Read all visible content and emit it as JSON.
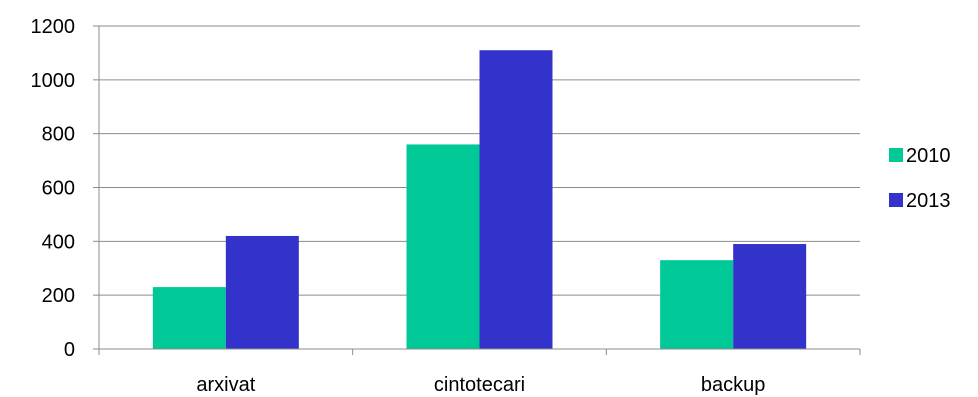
{
  "chart_data": {
    "type": "bar",
    "title": "",
    "xlabel": "",
    "ylabel": "",
    "categories": [
      "arxivat",
      "cintotecari",
      "backup"
    ],
    "series": [
      {
        "name": "2010",
        "values": [
          230,
          760,
          330
        ],
        "color": "#00C896"
      },
      {
        "name": "2013",
        "values": [
          420,
          1110,
          390
        ],
        "color": "#3333CC"
      }
    ],
    "ylim": [
      0,
      1200
    ],
    "yticks": [
      0,
      200,
      400,
      600,
      800,
      1000,
      1200
    ],
    "grid": true,
    "legend_position": "right"
  }
}
